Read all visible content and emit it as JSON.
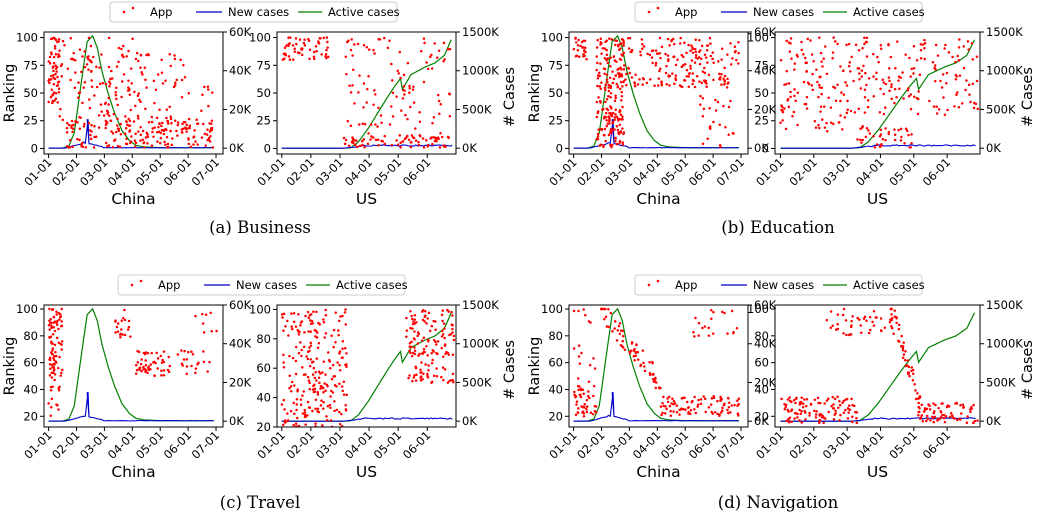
{
  "chart_data": [
    {
      "type": "scatter",
      "caption": "(a)  Business",
      "legend": [
        "App",
        "New cases",
        "Active cases"
      ],
      "ylabel_left": "Ranking",
      "ylabel_right": "# Cases",
      "colors": {
        "app": "#ff0000",
        "new_cases": "#0000cc",
        "active_cases": "#008000"
      },
      "panels": [
        {
          "region": "China",
          "xticks": [
            "01-01",
            "02-01",
            "03-01",
            "04-01",
            "05-01",
            "06-01",
            "07-01"
          ],
          "xlim": [
            -5,
            190
          ],
          "ylim_left": [
            -5,
            105
          ],
          "yticks_left": [
            0,
            25,
            50,
            75,
            100
          ],
          "ylim_right": [
            -3000,
            60000
          ],
          "yticks_right": [
            "0K",
            "20K",
            "40K",
            "60K"
          ],
          "rank_pattern": "dense-top-then-bottom",
          "new_cases": {
            "peak_day": 43,
            "peak": 15000
          },
          "active_cases": {
            "points": [
              [
                0,
                0
              ],
              [
                15,
                50
              ],
              [
                22,
                1000
              ],
              [
                28,
                8000
              ],
              [
                33,
                25000
              ],
              [
                38,
                42000
              ],
              [
                42,
                55000
              ],
              [
                48,
                58000
              ],
              [
                53,
                52000
              ],
              [
                58,
                40000
              ],
              [
                65,
                28000
              ],
              [
                72,
                18000
              ],
              [
                80,
                9000
              ],
              [
                88,
                4000
              ],
              [
                95,
                1500
              ],
              [
                105,
                600
              ],
              [
                120,
                300
              ],
              [
                150,
                200
              ],
              [
                180,
                250
              ]
            ]
          }
        },
        {
          "region": "US",
          "xticks": [
            "01-01",
            "02-01",
            "03-01",
            "04-01",
            "05-01",
            "06-01"
          ],
          "xlim": [
            -5,
            182
          ],
          "ylim_left": [
            -5,
            105
          ],
          "yticks_left": [
            0,
            25,
            50,
            75,
            100
          ],
          "ylim_right": [
            -75000,
            1500000
          ],
          "yticks_right": [
            "0K",
            "500K",
            "1000K",
            "1500K"
          ],
          "rank_pattern": "sparse-early-then-mid",
          "new_cases": {
            "level": 35000
          },
          "active_cases": {
            "points": [
              [
                0,
                0
              ],
              [
                65,
                0
              ],
              [
                72,
                5000
              ],
              [
                80,
                80000
              ],
              [
                90,
                250000
              ],
              [
                100,
                450000
              ],
              [
                110,
                650000
              ],
              [
                118,
                800000
              ],
              [
                124,
                900000
              ],
              [
                126,
                760000
              ],
              [
                135,
                950000
              ],
              [
                150,
                1050000
              ],
              [
                160,
                1100000
              ],
              [
                170,
                1200000
              ],
              [
                177,
                1400000
              ]
            ]
          }
        }
      ]
    },
    {
      "type": "scatter",
      "caption": "(b)  Education",
      "legend": [
        "App",
        "New cases",
        "Active cases"
      ],
      "ylabel_left": "Ranking",
      "ylabel_right": "# Cases",
      "colors": {
        "app": "#ff0000",
        "new_cases": "#0000cc",
        "active_cases": "#008000"
      },
      "panels": [
        {
          "region": "China",
          "xticks": [
            "01-01",
            "02-01",
            "03-01",
            "04-01",
            "05-01",
            "06-01",
            "07-01"
          ],
          "xlim": [
            -5,
            190
          ],
          "ylim_left": [
            -5,
            105
          ],
          "yticks_left": [
            0,
            25,
            50,
            75,
            100
          ],
          "ylim_right": [
            -3000,
            60000
          ],
          "yticks_right": [
            "0K",
            "20K",
            "40K",
            "60K"
          ],
          "rank_pattern": "spike-then-top",
          "new_cases": {
            "peak_day": 43,
            "peak": 15000
          },
          "active_cases": {
            "points": [
              [
                0,
                0
              ],
              [
                15,
                50
              ],
              [
                22,
                1000
              ],
              [
                28,
                8000
              ],
              [
                33,
                25000
              ],
              [
                38,
                42000
              ],
              [
                42,
                55000
              ],
              [
                48,
                58000
              ],
              [
                53,
                52000
              ],
              [
                58,
                40000
              ],
              [
                65,
                28000
              ],
              [
                72,
                18000
              ],
              [
                80,
                9000
              ],
              [
                88,
                4000
              ],
              [
                95,
                1500
              ],
              [
                105,
                600
              ],
              [
                120,
                300
              ],
              [
                150,
                200
              ],
              [
                180,
                250
              ]
            ]
          }
        },
        {
          "region": "US",
          "xticks": [
            "01-01",
            "02-01",
            "03-01",
            "04-01",
            "05-01",
            "06-01"
          ],
          "xlim": [
            -5,
            182
          ],
          "ylim_left": [
            -5,
            105
          ],
          "yticks_left": [
            0,
            25,
            50,
            75,
            100
          ],
          "ylim_right": [
            -75000,
            1500000
          ],
          "yticks_right": [
            "0K",
            "500K",
            "1000K",
            "1500K"
          ],
          "rank_pattern": "spread-top",
          "new_cases": {
            "level": 35000
          },
          "active_cases": {
            "points": [
              [
                0,
                0
              ],
              [
                65,
                0
              ],
              [
                72,
                5000
              ],
              [
                80,
                80000
              ],
              [
                90,
                250000
              ],
              [
                100,
                450000
              ],
              [
                110,
                650000
              ],
              [
                118,
                800000
              ],
              [
                124,
                900000
              ],
              [
                126,
                760000
              ],
              [
                135,
                950000
              ],
              [
                150,
                1050000
              ],
              [
                160,
                1100000
              ],
              [
                170,
                1200000
              ],
              [
                177,
                1400000
              ]
            ]
          }
        }
      ]
    },
    {
      "type": "scatter",
      "caption": "(c)  Travel",
      "legend": [
        "App",
        "New cases",
        "Active cases"
      ],
      "ylabel_left": "Ranking",
      "ylabel_right": "# Cases",
      "colors": {
        "app": "#ff0000",
        "new_cases": "#0000cc",
        "active_cases": "#008000"
      },
      "panels": [
        {
          "region": "China",
          "xticks": [
            "01-01",
            "02-01",
            "03-01",
            "04-01",
            "05-01",
            "06-01",
            "07-01"
          ],
          "xlim": [
            -5,
            190
          ],
          "ylim_left": [
            12,
            103
          ],
          "yticks_left": [
            20,
            40,
            60,
            80,
            100
          ],
          "ylim_right": [
            -3000,
            60000
          ],
          "yticks_right": [
            "0K",
            "20K",
            "40K",
            "60K"
          ],
          "rank_pattern": "early-cluster-then-mid",
          "new_cases": {
            "peak_day": 43,
            "peak": 15000
          },
          "active_cases": {
            "points": [
              [
                0,
                0
              ],
              [
                15,
                50
              ],
              [
                22,
                1000
              ],
              [
                28,
                8000
              ],
              [
                33,
                25000
              ],
              [
                38,
                42000
              ],
              [
                42,
                55000
              ],
              [
                48,
                58000
              ],
              [
                53,
                52000
              ],
              [
                58,
                40000
              ],
              [
                65,
                28000
              ],
              [
                72,
                18000
              ],
              [
                80,
                9000
              ],
              [
                88,
                4000
              ],
              [
                95,
                1500
              ],
              [
                105,
                600
              ],
              [
                120,
                300
              ],
              [
                150,
                200
              ],
              [
                180,
                250
              ]
            ]
          }
        },
        {
          "region": "US",
          "xticks": [
            "01-01",
            "02-01",
            "03-01",
            "04-01",
            "05-01",
            "06-01"
          ],
          "xlim": [
            -5,
            182
          ],
          "ylim_left": [
            20,
            103
          ],
          "yticks_left": [
            20,
            40,
            60,
            80,
            100
          ],
          "ylim_right": [
            -75000,
            1500000
          ],
          "yticks_right": [
            "0K",
            "500K",
            "1000K",
            "1500K"
          ],
          "rank_pattern": "dense-early-then-late",
          "new_cases": {
            "level": 35000
          },
          "active_cases": {
            "points": [
              [
                0,
                0
              ],
              [
                65,
                0
              ],
              [
                72,
                5000
              ],
              [
                80,
                80000
              ],
              [
                90,
                250000
              ],
              [
                100,
                450000
              ],
              [
                110,
                650000
              ],
              [
                118,
                800000
              ],
              [
                124,
                900000
              ],
              [
                126,
                760000
              ],
              [
                135,
                950000
              ],
              [
                150,
                1050000
              ],
              [
                160,
                1100000
              ],
              [
                170,
                1200000
              ],
              [
                177,
                1400000
              ]
            ]
          }
        }
      ]
    },
    {
      "type": "scatter",
      "caption": "(d)  Navigation",
      "legend": [
        "App",
        "New cases",
        "Active cases"
      ],
      "ylabel_left": "Ranking",
      "ylabel_right": "# Cases",
      "colors": {
        "app": "#ff0000",
        "new_cases": "#0000cc",
        "active_cases": "#008000"
      },
      "panels": [
        {
          "region": "China",
          "xticks": [
            "01-01",
            "02-01",
            "03-01",
            "04-01",
            "05-01",
            "06-01",
            "07-01"
          ],
          "xlim": [
            -5,
            190
          ],
          "ylim_left": [
            12,
            103
          ],
          "yticks_left": [
            20,
            40,
            60,
            80,
            100
          ],
          "ylim_right": [
            -3000,
            60000
          ],
          "yticks_right": [
            "0K",
            "20K",
            "40K",
            "60K"
          ],
          "rank_pattern": "low-then-descending",
          "new_cases": {
            "peak_day": 43,
            "peak": 15000
          },
          "active_cases": {
            "points": [
              [
                0,
                0
              ],
              [
                15,
                50
              ],
              [
                22,
                1000
              ],
              [
                28,
                8000
              ],
              [
                33,
                25000
              ],
              [
                38,
                42000
              ],
              [
                42,
                55000
              ],
              [
                48,
                58000
              ],
              [
                53,
                52000
              ],
              [
                58,
                40000
              ],
              [
                65,
                28000
              ],
              [
                72,
                18000
              ],
              [
                80,
                9000
              ],
              [
                88,
                4000
              ],
              [
                95,
                1500
              ],
              [
                105,
                600
              ],
              [
                120,
                300
              ],
              [
                150,
                200
              ],
              [
                180,
                250
              ]
            ]
          }
        },
        {
          "region": "US",
          "xticks": [
            "01-01",
            "02-01",
            "03-01",
            "04-01",
            "05-01",
            "06-01"
          ],
          "xlim": [
            -5,
            182
          ],
          "ylim_left": [
            12,
            103
          ],
          "yticks_left": [
            20,
            40,
            60,
            80,
            100
          ],
          "ylim_right": [
            -75000,
            1500000
          ],
          "yticks_right": [
            "0K",
            "500K",
            "1000K",
            "1500K"
          ],
          "rank_pattern": "low-then-high-then-low",
          "new_cases": {
            "level": 35000
          },
          "active_cases": {
            "points": [
              [
                0,
                0
              ],
              [
                65,
                0
              ],
              [
                72,
                5000
              ],
              [
                80,
                80000
              ],
              [
                90,
                250000
              ],
              [
                100,
                450000
              ],
              [
                110,
                650000
              ],
              [
                118,
                800000
              ],
              [
                124,
                900000
              ],
              [
                126,
                760000
              ],
              [
                135,
                950000
              ],
              [
                150,
                1050000
              ],
              [
                160,
                1100000
              ],
              [
                170,
                1200000
              ],
              [
                177,
                1400000
              ]
            ]
          }
        }
      ]
    }
  ]
}
